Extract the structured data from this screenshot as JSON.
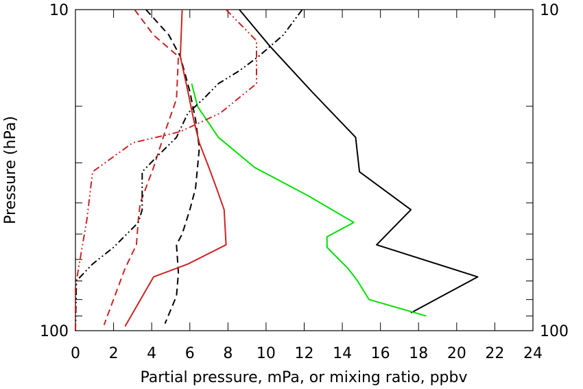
{
  "chart_data": {
    "type": "line",
    "xlabel": "Partial pressure, mPa, or mixing ratio, ppbv",
    "ylabel": "Pressure (hPa)",
    "xlim": [
      0,
      24
    ],
    "ylim": [
      100,
      10
    ],
    "y_scale": "log",
    "x_ticks": [
      0,
      2,
      4,
      6,
      8,
      10,
      12,
      14,
      16,
      18,
      20,
      22,
      24
    ],
    "y_tick_labels": [
      {
        "value": 10,
        "label": "10"
      },
      {
        "value": 100,
        "label": "100"
      }
    ],
    "y_minor_ticks": [
      20,
      30,
      40,
      50,
      60,
      70,
      80,
      90
    ],
    "grid": false,
    "series": [
      {
        "color": "#000000",
        "dash": "solid",
        "points": [
          [
            8.6,
            10
          ],
          [
            10.2,
            13
          ],
          [
            12.4,
            18
          ],
          [
            14.7,
            25
          ],
          [
            14.9,
            32
          ],
          [
            17.6,
            42
          ],
          [
            15.8,
            54
          ],
          [
            21.1,
            68
          ],
          [
            17.6,
            88
          ]
        ]
      },
      {
        "color": "#00e000",
        "dash": "solid",
        "points": [
          [
            6.1,
            17
          ],
          [
            6.4,
            20
          ],
          [
            7.5,
            25
          ],
          [
            9.4,
            31
          ],
          [
            12.2,
            38
          ],
          [
            14.6,
            46
          ],
          [
            13.2,
            51
          ],
          [
            13.2,
            55
          ],
          [
            14.3,
            64
          ],
          [
            14.8,
            70
          ],
          [
            15.4,
            80
          ],
          [
            18.4,
            90
          ]
        ]
      },
      {
        "color": "#000000",
        "dash": "dashed",
        "points": [
          [
            3.7,
            10
          ],
          [
            4.9,
            12
          ],
          [
            5.5,
            14
          ],
          [
            6.0,
            18
          ],
          [
            6.3,
            22
          ],
          [
            6.5,
            27
          ],
          [
            6.3,
            36
          ],
          [
            6.0,
            42
          ],
          [
            5.6,
            50
          ],
          [
            5.3,
            54
          ],
          [
            5.4,
            66
          ],
          [
            5.3,
            78
          ],
          [
            4.7,
            95
          ]
        ]
      },
      {
        "color": "#cc2222",
        "dash": "solid",
        "points": [
          [
            5.6,
            10
          ],
          [
            5.5,
            14
          ],
          [
            5.9,
            18
          ],
          [
            6.2,
            22
          ],
          [
            6.5,
            26
          ],
          [
            7.0,
            31
          ],
          [
            7.4,
            36
          ],
          [
            7.8,
            42
          ],
          [
            7.9,
            54
          ],
          [
            5.9,
            62
          ],
          [
            4.1,
            68
          ],
          [
            2.6,
            97
          ]
        ]
      },
      {
        "color": "#cc2222",
        "dash": "dashed",
        "points": [
          [
            3.1,
            10
          ],
          [
            4.1,
            12
          ],
          [
            5.4,
            14
          ],
          [
            5.3,
            19
          ],
          [
            4.7,
            24
          ],
          [
            4.1,
            31
          ],
          [
            3.4,
            40
          ],
          [
            3.3,
            45
          ],
          [
            3.2,
            54
          ],
          [
            2.6,
            64
          ],
          [
            1.5,
            96
          ]
        ]
      },
      {
        "color": "#000000",
        "dash": "dashdotdot",
        "points": [
          [
            11.9,
            10
          ],
          [
            10.9,
            12
          ],
          [
            9.6,
            14
          ],
          [
            8.6,
            15.5
          ],
          [
            7.5,
            17
          ],
          [
            6.7,
            19
          ],
          [
            5.9,
            21
          ],
          [
            5.3,
            25
          ],
          [
            4.2,
            29
          ],
          [
            3.5,
            32
          ],
          [
            3.5,
            42
          ],
          [
            3.3,
            46
          ],
          [
            2.0,
            55
          ],
          [
            0.9,
            62
          ],
          [
            0.05,
            70
          ],
          [
            0.0,
            100
          ]
        ]
      },
      {
        "color": "#cc2222",
        "dash": "dashdotdot",
        "points": [
          [
            7.9,
            10
          ],
          [
            9.5,
            12.5
          ],
          [
            9.5,
            17
          ],
          [
            7.6,
            21
          ],
          [
            5.5,
            24
          ],
          [
            3.0,
            26
          ],
          [
            0.9,
            32
          ],
          [
            0.6,
            45
          ],
          [
            0.2,
            62
          ],
          [
            0.0,
            73
          ],
          [
            0.0,
            100
          ]
        ]
      }
    ]
  }
}
